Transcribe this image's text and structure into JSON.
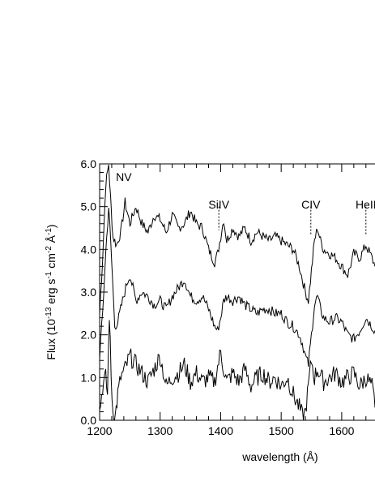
{
  "chart_data": {
    "type": "line",
    "title": "",
    "xlabel": "wavelength (Å)",
    "ylabel_parts": [
      "Flux (10",
      "-13",
      " erg s",
      "-1",
      " cm",
      "-2",
      " Å",
      "-1",
      ")"
    ],
    "xlim": [
      1200,
      1655
    ],
    "ylim": [
      0.0,
      6.0
    ],
    "x_ticks": [
      1200,
      1300,
      1400,
      1500,
      1600
    ],
    "y_ticks": [
      "0.0",
      "1.0",
      "2.0",
      "3.0",
      "4.0",
      "5.0",
      "6.0"
    ],
    "line_annotations": [
      {
        "label": "NV",
        "x": 1240,
        "label_y": 5.7,
        "dashed": false
      },
      {
        "label": "SiIV",
        "x": 1397,
        "label_y": 5.05,
        "dashed": true,
        "tick_top": 5.0,
        "tick_bottom": 4.45
      },
      {
        "label": "CIV",
        "x": 1549,
        "label_y": 5.05,
        "dashed": true,
        "tick_top": 5.0,
        "tick_bottom": 4.35
      },
      {
        "label": "HeII",
        "x": 1640,
        "label_y": 5.05,
        "dashed": true,
        "tick_top": 5.0,
        "tick_bottom": 4.35
      }
    ],
    "series": [
      {
        "x": [
          1200,
          1205,
          1210,
          1215,
          1218,
          1222,
          1228,
          1235,
          1242,
          1250,
          1260,
          1270,
          1280,
          1290,
          1300,
          1310,
          1320,
          1330,
          1340,
          1350,
          1360,
          1370,
          1380,
          1390,
          1395,
          1400,
          1405,
          1410,
          1420,
          1430,
          1440,
          1450,
          1460,
          1470,
          1480,
          1490,
          1500,
          1510,
          1520,
          1530,
          1535,
          1540,
          1545,
          1550,
          1555,
          1560,
          1565,
          1570,
          1580,
          1590,
          1600,
          1610,
          1620,
          1630,
          1640,
          1650,
          1655
        ],
        "y": [
          2.5,
          3.8,
          5.5,
          6.0,
          5.2,
          4.3,
          4.1,
          4.4,
          5.1,
          4.6,
          5.0,
          4.6,
          4.4,
          4.8,
          4.7,
          4.4,
          4.8,
          4.5,
          4.6,
          4.9,
          4.6,
          4.5,
          4.0,
          3.7,
          3.9,
          4.3,
          4.7,
          4.2,
          4.5,
          4.3,
          4.5,
          4.2,
          4.4,
          4.3,
          4.2,
          4.3,
          4.2,
          4.1,
          4.0,
          3.6,
          3.3,
          3.0,
          2.8,
          3.5,
          4.2,
          4.5,
          4.2,
          4.0,
          3.9,
          3.8,
          3.6,
          3.4,
          3.9,
          3.8,
          4.1,
          3.8,
          3.6
        ]
      },
      {
        "x": [
          1200,
          1205,
          1210,
          1215,
          1220,
          1225,
          1230,
          1238,
          1245,
          1250,
          1260,
          1270,
          1280,
          1290,
          1300,
          1310,
          1320,
          1330,
          1340,
          1350,
          1360,
          1370,
          1380,
          1390,
          1395,
          1400,
          1405,
          1410,
          1420,
          1430,
          1440,
          1450,
          1460,
          1470,
          1480,
          1490,
          1500,
          1510,
          1520,
          1530,
          1535,
          1540,
          1545,
          1550,
          1555,
          1560,
          1565,
          1570,
          1580,
          1590,
          1600,
          1610,
          1620,
          1630,
          1640,
          1650,
          1655
        ],
        "y": [
          1.5,
          2.5,
          3.9,
          5.0,
          3.7,
          2.2,
          2.3,
          2.8,
          3.2,
          3.4,
          2.8,
          3.0,
          2.9,
          2.7,
          2.8,
          2.6,
          2.9,
          3.1,
          3.3,
          2.9,
          2.8,
          2.9,
          2.6,
          2.2,
          2.1,
          2.4,
          2.8,
          2.9,
          2.8,
          2.9,
          2.7,
          2.6,
          2.5,
          2.6,
          2.6,
          2.5,
          2.5,
          2.3,
          2.2,
          2.0,
          1.8,
          1.5,
          1.3,
          2.0,
          2.7,
          2.9,
          2.6,
          2.4,
          2.3,
          2.4,
          2.3,
          2.0,
          1.9,
          2.1,
          2.4,
          2.2,
          2.1
        ]
      },
      {
        "x": [
          1200,
          1205,
          1210,
          1213,
          1216,
          1219,
          1222,
          1226,
          1230,
          1235,
          1242,
          1250,
          1260,
          1270,
          1280,
          1290,
          1300,
          1310,
          1320,
          1330,
          1340,
          1350,
          1360,
          1370,
          1380,
          1390,
          1400,
          1405,
          1410,
          1420,
          1430,
          1440,
          1450,
          1460,
          1470,
          1480,
          1490,
          1500,
          1510,
          1520,
          1530,
          1535,
          1540,
          1545,
          1550,
          1555,
          1560,
          1570,
          1580,
          1590,
          1600,
          1610,
          1620,
          1630,
          1640,
          1650,
          1655
        ],
        "y": [
          0.2,
          0.8,
          1.0,
          0.6,
          2.5,
          1.0,
          0.2,
          0.1,
          0.6,
          1.0,
          1.2,
          1.5,
          1.3,
          1.1,
          0.9,
          1.2,
          1.5,
          0.8,
          1.0,
          1.1,
          1.3,
          0.9,
          1.1,
          0.9,
          1.0,
          0.9,
          1.6,
          1.2,
          0.9,
          1.1,
          0.9,
          1.2,
          0.8,
          1.0,
          1.1,
          0.9,
          1.0,
          0.8,
          1.0,
          0.6,
          0.3,
          0.1,
          0.2,
          0.8,
          1.4,
          1.0,
          1.2,
          0.9,
          1.0,
          1.1,
          0.9,
          1.0,
          1.1,
          0.8,
          1.0,
          0.8,
          0.3
        ]
      }
    ]
  }
}
